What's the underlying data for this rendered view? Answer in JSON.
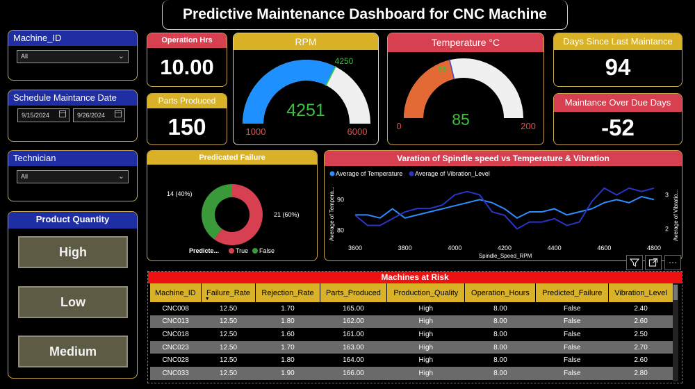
{
  "title": "Predictive Maintenance Dashboard for CNC Machine",
  "slicers": {
    "machine_id": {
      "label": "Machine_ID",
      "value": "All"
    },
    "schedule": {
      "label": "Schedule Maintance Date",
      "start": "9/15/2024",
      "end": "9/26/2024"
    },
    "technician": {
      "label": "Technician",
      "value": "All"
    },
    "product_quantity": {
      "label": "Product Quantity",
      "options": [
        "High",
        "Low",
        "Medium"
      ]
    }
  },
  "kpis": {
    "operation_hrs": {
      "label": "Operation Hrs",
      "value": "10.00"
    },
    "parts_produced": {
      "label": "Parts Produced",
      "value": "150"
    },
    "days_since": {
      "label": "Days Since Last Maintance",
      "value": "94"
    },
    "overdue": {
      "label": "Maintance Over Due Days",
      "value": "-52"
    }
  },
  "rpm_gauge": {
    "label": "RPM",
    "value": 4251,
    "min": 1000,
    "max": 6000,
    "target": 4250,
    "value_text": "4251",
    "min_text": "1000",
    "max_text": "6000",
    "target_text": "4250",
    "fill_color": "#1e90ff"
  },
  "temp_gauge": {
    "label": "Temperature °C",
    "value": 85,
    "min": 0,
    "max": 200,
    "target": 85,
    "value_text": "85",
    "min_text": "0",
    "max_text": "200",
    "target_text": "85",
    "fill_color": "#e46a35"
  },
  "failure_chart": {
    "label": "Predicated Failure",
    "legend_title": "Predicte...",
    "true_label": "True",
    "false_label": "False",
    "true_text": "21 (60%)",
    "false_text": "14 (40%)",
    "true_color": "#d64050",
    "false_color": "#3a9a3a"
  },
  "chart_data": {
    "type": "line",
    "title": "Varation of Spindle speed vs Temperature & Vibration",
    "xlabel": "Spindle_Speed_RPM",
    "ylabel_left": "Average of Tempera...",
    "ylabel_right": "Average of Vibratio...",
    "x_ticks": [
      "3600",
      "3800",
      "4000",
      "4200",
      "4400",
      "4600",
      "4800"
    ],
    "y_left_ticks": [
      "80",
      "90"
    ],
    "y_right_ticks": [
      "2",
      "3"
    ],
    "xlim": [
      3600,
      4800
    ],
    "y_left_lim": [
      76,
      96
    ],
    "y_right_lim": [
      1.6,
      3.4
    ],
    "series": [
      {
        "name": "Average of Temperature",
        "color": "#2f8cff",
        "axis": "left",
        "x": [
          3600,
          3650,
          3700,
          3750,
          3800,
          3850,
          3900,
          3950,
          4000,
          4050,
          4100,
          4150,
          4200,
          4250,
          4300,
          4350,
          4400,
          4450,
          4500,
          4550,
          4600,
          4650,
          4700,
          4750,
          4800
        ],
        "values": [
          85,
          85,
          84,
          87,
          84,
          85,
          86,
          87,
          88,
          89,
          90,
          89,
          87,
          84,
          86,
          86,
          87,
          85,
          86,
          87,
          89,
          90,
          89,
          91,
          90
        ]
      },
      {
        "name": "Average of Vibration_Level",
        "color": "#2a35c8",
        "axis": "right",
        "x": [
          3600,
          3650,
          3700,
          3750,
          3800,
          3850,
          3900,
          3950,
          4000,
          4050,
          4100,
          4150,
          4200,
          4250,
          4300,
          4350,
          4400,
          4450,
          4500,
          4550,
          4600,
          4650,
          4700,
          4750,
          4800
        ],
        "values": [
          2.4,
          2.1,
          2.1,
          2.3,
          2.5,
          2.6,
          2.6,
          2.7,
          3.0,
          3.1,
          3.0,
          2.5,
          2.4,
          2.0,
          2.2,
          2.2,
          2.3,
          2.1,
          2.2,
          2.8,
          3.2,
          3.0,
          3.2,
          3.1,
          3.2
        ]
      }
    ]
  },
  "table": {
    "title": "Machines at Risk",
    "columns": [
      "Machine_ID",
      "Failure_Rate",
      "Rejection_Rate",
      "Parts_Produced",
      "Production_Quality",
      "Operation_Hours",
      "Predicted_Failure",
      "Vibration_Level"
    ],
    "rows": [
      [
        "CNC008",
        "12.50",
        "1.70",
        "165.00",
        "High",
        "8.00",
        "False",
        "2.40"
      ],
      [
        "CNC013",
        "12.50",
        "1.80",
        "162.00",
        "High",
        "8.00",
        "False",
        "2.60"
      ],
      [
        "CNC018",
        "12.50",
        "1.60",
        "161.00",
        "High",
        "8.00",
        "False",
        "2.50"
      ],
      [
        "CNC023",
        "12.50",
        "1.70",
        "163.00",
        "High",
        "8.00",
        "False",
        "2.70"
      ],
      [
        "CNC028",
        "12.50",
        "1.80",
        "164.00",
        "High",
        "8.00",
        "False",
        "2.60"
      ],
      [
        "CNC033",
        "12.50",
        "1.90",
        "166.00",
        "High",
        "8.00",
        "False",
        "2.80"
      ]
    ]
  },
  "icons": {
    "filter": "filter-icon",
    "expand": "focus-mode-icon",
    "more": "more-options-icon"
  }
}
